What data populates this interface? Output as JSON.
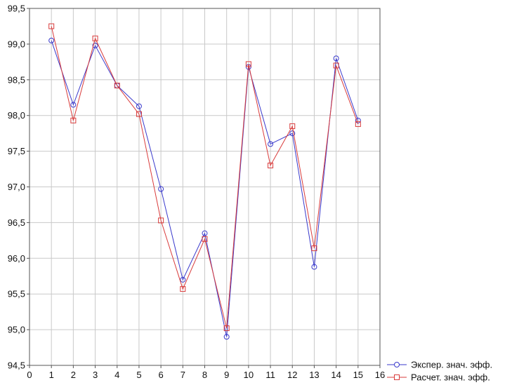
{
  "chart_data": {
    "type": "line",
    "x": [
      1,
      2,
      3,
      4,
      5,
      6,
      7,
      8,
      9,
      10,
      11,
      12,
      13,
      14,
      15
    ],
    "xlim": [
      0,
      16
    ],
    "ylim": [
      94.5,
      99.5
    ],
    "x_ticks": [
      "0",
      "1",
      "2",
      "3",
      "4",
      "5",
      "6",
      "7",
      "8",
      "9",
      "10",
      "11",
      "12",
      "13",
      "14",
      "15",
      "16"
    ],
    "y_ticks": [
      "94,5",
      "95,0",
      "95,5",
      "96,0",
      "96,5",
      "97,0",
      "97,5",
      "98,0",
      "98,5",
      "99,0",
      "99,5"
    ],
    "grid": true,
    "legend": "bottom-right",
    "series": [
      {
        "name": "Экспер. знач. эфф.",
        "color": "#3a3acc",
        "marker": "circle",
        "values": [
          99.05,
          98.15,
          98.98,
          98.42,
          98.13,
          96.97,
          95.7,
          96.35,
          94.9,
          98.68,
          97.6,
          97.75,
          95.88,
          98.8,
          97.93
        ]
      },
      {
        "name": "Расчет. знач. эфф.",
        "color": "#d93b3b",
        "marker": "square",
        "values": [
          99.25,
          97.93,
          99.08,
          98.42,
          98.02,
          96.53,
          95.57,
          96.27,
          95.02,
          98.72,
          97.3,
          97.85,
          96.14,
          98.7,
          97.88
        ]
      }
    ]
  }
}
